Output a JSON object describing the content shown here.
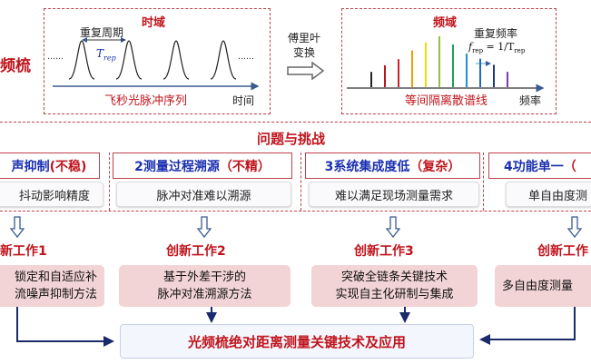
{
  "left_label": "频梳",
  "time_domain": {
    "title": "时域",
    "period_label": "重复周期",
    "period_symbol": "T",
    "period_sub": "rep",
    "dots": "……",
    "sequence_label": "飞秒光脉冲序列",
    "axis_label": "时间"
  },
  "transform": {
    "line1": "傅里叶",
    "line2": "变换"
  },
  "freq_domain": {
    "title": "频域",
    "rate_label": "重复频率",
    "formula": "f",
    "formula_sub": "rep",
    "formula_rest": " = 1/T",
    "formula_rest_sub": "rep",
    "lines_label": "等间隔离散谱线",
    "axis_label": "频率",
    "line_colors": [
      "#222222",
      "#c0141c",
      "#d0202a",
      "#f0a000",
      "#f0e000",
      "#8cc43c",
      "#1ea050",
      "#1e90d8",
      "#1e6cb8",
      "#1a3a80",
      "#7a3ab0"
    ],
    "line_heights": [
      0.3,
      0.43,
      0.55,
      0.72,
      0.88,
      1.0,
      0.84,
      0.66,
      0.56,
      0.44,
      0.3
    ]
  },
  "challenges": {
    "title": "问题与挑战",
    "columns": [
      {
        "title_main": "声抑制",
        "title_tag": "(不稳)",
        "desc": "抖动影响精度"
      },
      {
        "title_main": "2测量过程溯源",
        "title_tag": "（不精）",
        "desc": "脉冲对准难以溯源"
      },
      {
        "title_main": "3系统集成度低",
        "title_tag": "（复杂）",
        "desc": "难以满足现场测量需求"
      },
      {
        "title_main": "4功能单一",
        "title_tag": "（",
        "desc": "单自由度测"
      }
    ]
  },
  "innovations": [
    {
      "title": "新工作1",
      "desc": "锁定和自适应补\n流噪声抑制方法"
    },
    {
      "title": "创新工作2",
      "desc": "基于外差干涉的\n脉冲对准溯源方法"
    },
    {
      "title": "创新工作3",
      "desc": "突破全链条关键技术\n实现自主化研制与集成"
    },
    {
      "title": "创新工作",
      "desc": "多自由度测量"
    }
  ],
  "result": "光频梳绝对距离测量关键技术及应用"
}
